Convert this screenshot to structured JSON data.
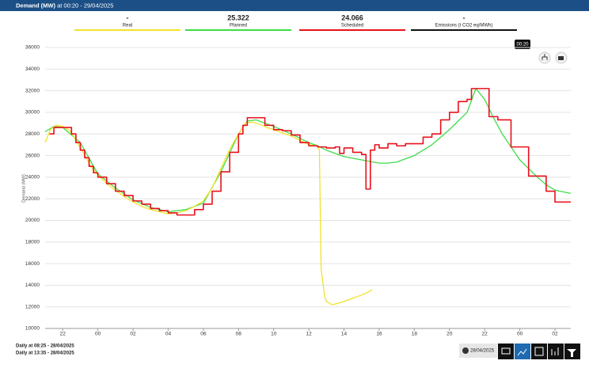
{
  "chart_data": {
    "type": "line",
    "title": "Demand (MW)",
    "subtitle": "at 00:20 - 29/04/2025",
    "y_label": "Demand (MW)",
    "tooltip": "00:20",
    "legend_values": [
      "-",
      "25.322",
      "24.066",
      "-"
    ],
    "footer": [
      "Daily at 08:25 - 28/04/2025",
      "Daily at 13:35 - 28/04/2025"
    ],
    "date": "28/04/2025",
    "xlim": [
      21,
      50.9
    ],
    "ylim": [
      10000,
      36000
    ],
    "xticks": [
      22,
      {
        "value": 24,
        "label": "00"
      },
      {
        "value": 26,
        "label": "02"
      },
      {
        "value": 28,
        "label": "04"
      },
      {
        "value": 30,
        "label": "06"
      },
      {
        "value": 32,
        "label": "08"
      },
      {
        "value": 34,
        "label": "10"
      },
      {
        "value": 36,
        "label": "12"
      },
      {
        "value": 38,
        "label": "14"
      },
      {
        "value": 40,
        "label": "16"
      },
      {
        "value": 42,
        "label": "18"
      },
      {
        "value": 44,
        "label": "20"
      },
      {
        "value": 46,
        "label": "22"
      },
      {
        "value": 48,
        "label": "00"
      },
      {
        "value": 50,
        "label": "02"
      }
    ],
    "yticks": [
      10000,
      12000,
      14000,
      16000,
      18000,
      20000,
      22000,
      24000,
      26000,
      28000,
      30000,
      32000,
      34000,
      36000
    ],
    "grid": true,
    "series": [
      {
        "name": "Real",
        "color": "#f2e22a",
        "step": false,
        "x": [
          21.0,
          21.3,
          21.6,
          22.0,
          22.4,
          22.8,
          23.2,
          23.6,
          24.0,
          24.5,
          25.0,
          25.5,
          26.0,
          26.5,
          27.0,
          27.5,
          28.0,
          28.5,
          29.0,
          29.5,
          30.0,
          30.5,
          31.0,
          31.5,
          32.0,
          32.4,
          32.8,
          33.2,
          33.6,
          34.0,
          34.5,
          35.0,
          35.5,
          36.0,
          36.5,
          36.6,
          36.7,
          36.9,
          37.0,
          37.3,
          37.6,
          38.0,
          38.5,
          39.0,
          39.3,
          39.6
        ],
        "values": [
          27200,
          28400,
          28800,
          28700,
          28300,
          27300,
          26200,
          25000,
          24200,
          23400,
          22800,
          22200,
          21700,
          21300,
          21000,
          20800,
          20600,
          20700,
          20900,
          21300,
          21800,
          23000,
          24800,
          26600,
          28000,
          29000,
          29100,
          28900,
          28600,
          28400,
          28100,
          27800,
          27400,
          27000,
          26900,
          26500,
          15500,
          13000,
          12500,
          12200,
          12300,
          12500,
          12800,
          13100,
          13300,
          13600
        ]
      },
      {
        "name": "Planned",
        "color": "#3ddc4a",
        "step": false,
        "x": [
          21.0,
          21.5,
          22.0,
          23.0,
          24.0,
          25.0,
          26.0,
          27.0,
          28.0,
          29.0,
          30.0,
          31.0,
          32.0,
          32.5,
          33.0,
          34.0,
          35.0,
          36.0,
          36.5,
          37.0,
          38.0,
          39.0,
          40.0,
          40.5,
          41.0,
          42.0,
          43.0,
          44.0,
          45.0,
          45.5,
          46.0,
          46.5,
          47.0,
          47.5,
          48.0,
          48.5,
          49.0,
          49.5,
          50.0,
          50.9
        ],
        "values": [
          28200,
          28700,
          28600,
          27200,
          24300,
          23000,
          21900,
          21200,
          20800,
          21000,
          21600,
          24500,
          28000,
          29200,
          29300,
          28700,
          28000,
          27200,
          26900,
          26500,
          25900,
          25600,
          25300,
          25300,
          25400,
          26000,
          27000,
          28400,
          30000,
          32200,
          31200,
          29500,
          28000,
          26800,
          25600,
          24800,
          24000,
          23300,
          22800,
          22500
        ]
      },
      {
        "name": "Scheduled",
        "color": "#e8111b",
        "step": true,
        "x": [
          21.25,
          21.5,
          22.0,
          22.5,
          22.75,
          23.0,
          23.25,
          23.5,
          23.75,
          24.0,
          24.5,
          25.0,
          25.5,
          26.0,
          26.5,
          27.0,
          27.5,
          28.0,
          28.5,
          29.0,
          29.5,
          30.0,
          30.5,
          31.0,
          31.5,
          32.0,
          32.25,
          32.5,
          33.0,
          33.5,
          34.0,
          34.5,
          35.0,
          35.5,
          36.0,
          36.5,
          37.0,
          37.5,
          37.75,
          38.0,
          38.5,
          39.0,
          39.25,
          39.5,
          39.75,
          40.0,
          40.5,
          41.0,
          41.5,
          42.0,
          42.5,
          43.0,
          43.5,
          44.0,
          44.5,
          45.0,
          45.25,
          46.25,
          46.75,
          47.5,
          48.5,
          49.5,
          50.0,
          50.9
        ],
        "values": [
          28000,
          28600,
          28600,
          28000,
          27200,
          26500,
          25800,
          25000,
          24400,
          24000,
          23400,
          22700,
          22300,
          21800,
          21500,
          21100,
          20900,
          20700,
          20500,
          20500,
          21000,
          21500,
          22700,
          24500,
          26300,
          28000,
          28800,
          29500,
          29500,
          28800,
          28400,
          28300,
          27900,
          27200,
          26900,
          26800,
          26700,
          26800,
          26200,
          26700,
          26300,
          26100,
          22900,
          26500,
          27000,
          26700,
          27100,
          26900,
          27100,
          27100,
          27700,
          28000,
          29300,
          30000,
          31000,
          31200,
          32200,
          29600,
          29300,
          26800,
          24100,
          22700,
          21700,
          21700
        ]
      },
      {
        "name": "Emissions (t CO2 eq/MWh)",
        "color": "#111111",
        "step": false,
        "x": [],
        "values": []
      }
    ]
  }
}
